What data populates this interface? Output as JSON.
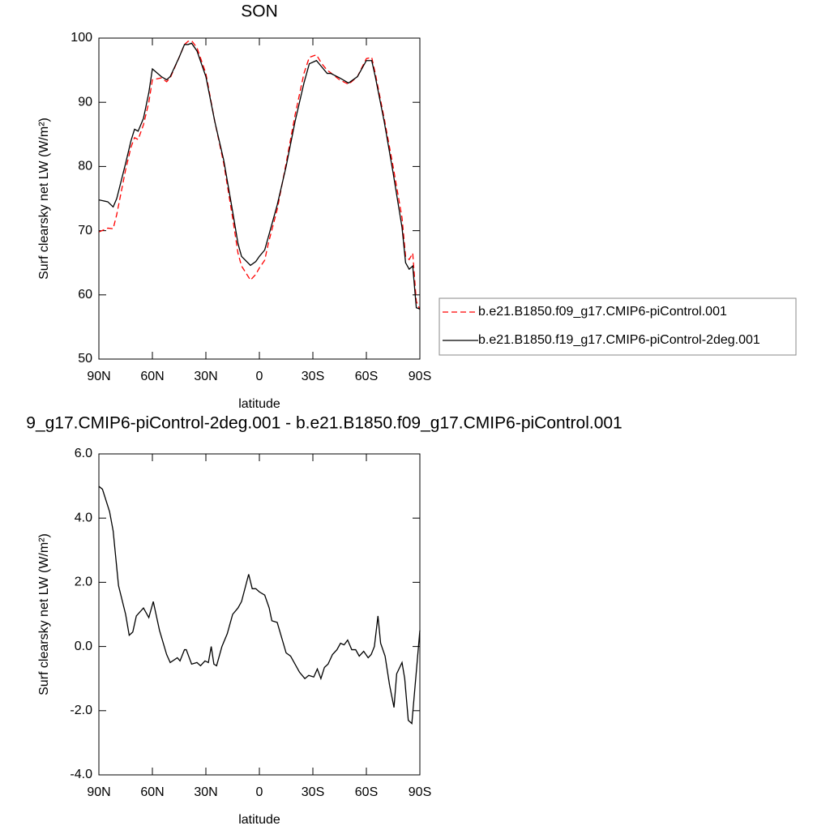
{
  "chart_data": [
    {
      "type": "line",
      "title": "SON",
      "xlabel": "latitude",
      "ylabel": "Surf clearsky net LW (W/m²)",
      "x": [
        90,
        85,
        82,
        80,
        75,
        72,
        70,
        68,
        65,
        62,
        60,
        55,
        52,
        50,
        45,
        42,
        40,
        38,
        35,
        30,
        25,
        20,
        15,
        12,
        10,
        5,
        2,
        0,
        -3,
        -5,
        -10,
        -15,
        -20,
        -25,
        -28,
        -32,
        -35,
        -38,
        -40,
        -45,
        -50,
        -55,
        -60,
        -63,
        -65,
        -70,
        -75,
        -80,
        -82,
        -84,
        -86,
        -88,
        -90
      ],
      "xlim": [
        90,
        -90
      ],
      "xticks": [
        {
          "value": 90,
          "label": "90N"
        },
        {
          "value": 60,
          "label": "60N"
        },
        {
          "value": 30,
          "label": "30N"
        },
        0,
        {
          "value": -30,
          "label": "30S"
        },
        {
          "value": -60,
          "label": "60S"
        },
        {
          "value": -90,
          "label": "90S"
        }
      ],
      "ylim": [
        50,
        100
      ],
      "yticks": [
        50,
        60,
        70,
        80,
        90,
        100
      ],
      "legend": "right",
      "series": [
        {
          "name": "b.e21.B1850.f09_g17.CMIP6-piControl.001",
          "color": "#ff0000",
          "dash": true,
          "values": [
            69.8,
            70.4,
            70.3,
            72.5,
            79.5,
            83,
            84.5,
            84.2,
            86.5,
            90,
            93.5,
            93.8,
            93.2,
            93.8,
            97,
            99,
            99.5,
            99.6,
            98.5,
            94.5,
            87,
            80.5,
            72,
            66.5,
            64.5,
            62.3,
            63.2,
            64.2,
            65.4,
            68,
            73.3,
            80.5,
            88,
            94.5,
            97,
            97.4,
            96,
            95,
            94.6,
            93.5,
            92.8,
            94,
            96.8,
            97,
            94.5,
            87.5,
            80,
            72,
            66,
            65.5,
            66.5,
            59,
            57.7
          ]
        },
        {
          "name": "b.e21.B1850.f19_g17.CMIP6-piControl-2deg.001",
          "color": "#000000",
          "dash": false,
          "values": [
            74.8,
            74.5,
            73.7,
            75,
            80.5,
            84,
            85.8,
            85.5,
            87.5,
            91.5,
            95.2,
            94,
            93.5,
            94,
            97,
            99,
            99,
            99.2,
            98,
            94,
            87,
            81,
            73,
            68,
            66,
            64.6,
            65.2,
            66,
            67,
            69,
            74,
            80,
            87,
            93,
            96,
            96.5,
            95.5,
            94.5,
            94.5,
            93.8,
            93,
            94,
            96.5,
            96.5,
            94,
            87,
            79,
            70.5,
            65,
            64,
            64.5,
            58,
            57.8
          ]
        }
      ]
    },
    {
      "type": "line",
      "title": "9_g17.CMIP6-piControl-2deg.001 - b.e21.B1850.f09_g17.CMIP6-piControl.001",
      "xlabel": "latitude",
      "ylabel": "Surf clearsky net LW (W/m²)",
      "x": [
        90,
        88,
        84,
        82,
        79,
        75,
        73,
        71,
        69,
        65,
        62,
        59.5,
        56,
        52,
        50,
        46,
        44.5,
        42,
        41,
        38,
        35,
        33,
        30.5,
        28.6,
        27,
        25.5,
        24,
        21,
        18,
        15,
        12,
        10,
        6,
        4,
        2,
        0,
        -3,
        -5.5,
        -7,
        -10,
        -15,
        -17.5,
        -22.5,
        -25.5,
        -27.7,
        -30.5,
        -32.5,
        -34.5,
        -36.5,
        -38.5,
        -41,
        -43.5,
        -45.5,
        -47.5,
        -49.5,
        -51.8,
        -54,
        -56,
        -58.5,
        -61,
        -62.7,
        -64.5,
        -66.5,
        -68,
        -70.5,
        -73,
        -75.5,
        -77,
        -80,
        -81.5,
        -83.5,
        -85.5,
        -90
      ],
      "values": [
        4.99,
        4.9,
        4.2,
        3.6,
        1.9,
        1.0,
        0.35,
        0.45,
        0.95,
        1.2,
        0.9,
        1.4,
        0.5,
        -0.25,
        -0.5,
        -0.35,
        -0.45,
        -0.1,
        -0.1,
        -0.55,
        -0.5,
        -0.6,
        -0.45,
        -0.5,
        0.0,
        -0.55,
        -0.6,
        0.0,
        0.4,
        1.0,
        1.2,
        1.4,
        2.25,
        1.8,
        1.8,
        1.7,
        1.6,
        1.2,
        0.8,
        0.75,
        -0.2,
        -0.3,
        -0.8,
        -1.0,
        -0.9,
        -0.95,
        -0.7,
        -1.0,
        -0.65,
        -0.55,
        -0.25,
        -0.1,
        0.1,
        0.05,
        0.2,
        -0.1,
        -0.1,
        -0.3,
        -0.15,
        -0.35,
        -0.25,
        0.0,
        0.95,
        0.1,
        -0.3,
        -1.2,
        -1.9,
        -0.85,
        -0.5,
        -1.0,
        -2.3,
        -2.4,
        0.5
      ],
      "color": "#000000",
      "xlim": [
        90,
        -90
      ],
      "xticks": [
        {
          "value": 90,
          "label": "90N"
        },
        {
          "value": 60,
          "label": "60N"
        },
        {
          "value": 30,
          "label": "30N"
        },
        0,
        {
          "value": -30,
          "label": "30S"
        },
        {
          "value": -60,
          "label": "60S"
        },
        {
          "value": -90,
          "label": "90S"
        }
      ],
      "ylim": [
        -4,
        6
      ],
      "yticks": [
        {
          "value": -4,
          "label": "-4.0"
        },
        {
          "value": -2,
          "label": "-2.0"
        },
        {
          "value": 0,
          "label": "0.0"
        },
        {
          "value": 2,
          "label": "2.0"
        },
        {
          "value": 4,
          "label": "4.0"
        },
        {
          "value": 6,
          "label": "6.0"
        }
      ]
    }
  ]
}
